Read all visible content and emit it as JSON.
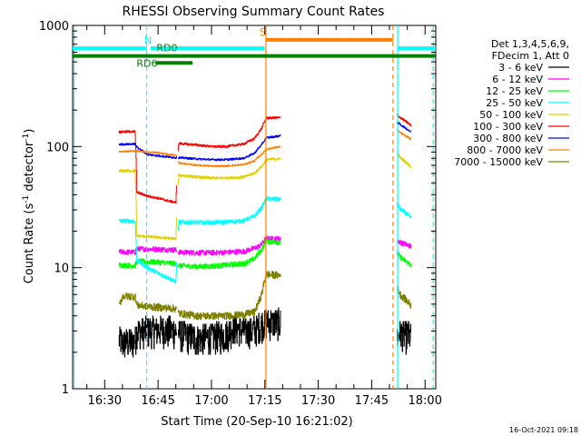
{
  "chart_data": {
    "type": "line",
    "title": "RHESSI Observing Summary Count Rates",
    "xlabel": "Start Time (20-Sep-10 16:21:02)",
    "ylabel_main": "Count Rate (s",
    "ylabel_sup1": "-1",
    "ylabel_mid": " detector",
    "ylabel_sup2": "-1",
    "ylabel_end": ")",
    "footer": "16-Oct-2021 09:18",
    "x_unit": "minutes",
    "xlim": [
      981,
      1083
    ],
    "ylim": [
      1,
      1000
    ],
    "y_scale": "log",
    "x_ticks": [
      {
        "value": 990,
        "label": "16:30"
      },
      {
        "value": 1005,
        "label": "16:45"
      },
      {
        "value": 1020,
        "label": "17:00"
      },
      {
        "value": 1035,
        "label": "17:15"
      },
      {
        "value": 1050,
        "label": "17:30"
      },
      {
        "value": 1065,
        "label": "17:45"
      },
      {
        "value": 1080,
        "label": "18:00"
      }
    ],
    "y_ticks": [
      {
        "value": 1,
        "label": "1"
      },
      {
        "value": 10,
        "label": "10"
      },
      {
        "value": 100,
        "label": "100"
      },
      {
        "value": 1000,
        "label": "1000"
      }
    ],
    "legend": {
      "header": [
        "Det 1,3,4,5,6,9,",
        "FDecim 1, Att 0"
      ],
      "placement": "right"
    },
    "gaps": [
      [
        1010.2,
        1010.6
      ],
      [
        1039.4,
        1072
      ]
    ],
    "series": [
      {
        "name": "3 - 6 keV",
        "color": "#000000",
        "noise": 0.1,
        "points": [
          [
            994,
            2.6
          ],
          [
            995,
            2.4
          ],
          [
            998.5,
            2.5
          ],
          [
            999,
            3.0
          ],
          [
            1005,
            3.1
          ],
          [
            1010,
            3.0
          ],
          [
            1010.8,
            2.9
          ],
          [
            1016,
            2.6
          ],
          [
            1020,
            2.7
          ],
          [
            1024,
            2.8
          ],
          [
            1026,
            3.2
          ],
          [
            1027,
            3.2
          ],
          [
            1029,
            3.0
          ],
          [
            1031,
            3.0
          ],
          [
            1033,
            3.2
          ],
          [
            1034,
            3.4
          ],
          [
            1035,
            3.5
          ],
          [
            1035.4,
            3.6
          ],
          [
            1071.8,
            2.6
          ],
          [
            1073,
            2.9
          ],
          [
            1076,
            2.7
          ]
        ]
      },
      {
        "name": "6 - 12 keV",
        "color": "#ff00ff",
        "noise": 0.05,
        "points": [
          [
            994,
            13.5
          ],
          [
            998.5,
            13.4
          ],
          [
            999,
            14.3
          ],
          [
            1005,
            14.2
          ],
          [
            1010,
            14.0
          ],
          [
            1010.8,
            13.4
          ],
          [
            1016,
            13.3
          ],
          [
            1020,
            13.3
          ],
          [
            1024,
            13.4
          ],
          [
            1029,
            13.6
          ],
          [
            1033,
            14.8
          ],
          [
            1034,
            15.6
          ],
          [
            1035,
            17.0
          ],
          [
            1035.4,
            17.4
          ],
          [
            1071.8,
            17.0
          ],
          [
            1073,
            16.2
          ],
          [
            1076,
            15.0
          ]
        ]
      },
      {
        "name": "12 - 25 keV",
        "color": "#00ff00",
        "noise": 0.05,
        "points": [
          [
            994,
            10.5
          ],
          [
            998.5,
            10.4
          ],
          [
            999,
            11.3
          ],
          [
            1005,
            11.1
          ],
          [
            1010,
            10.8
          ],
          [
            1010.8,
            10.4
          ],
          [
            1016,
            10.2
          ],
          [
            1020,
            10.3
          ],
          [
            1024,
            10.5
          ],
          [
            1029,
            10.8
          ],
          [
            1032,
            11.8
          ],
          [
            1034,
            14.0
          ],
          [
            1035.4,
            16.5
          ],
          [
            1071.8,
            13.5
          ],
          [
            1073,
            12.2
          ],
          [
            1076,
            10.5
          ]
        ]
      },
      {
        "name": "25 - 50 keV",
        "color": "#00ffff",
        "noise": 0.04,
        "points": [
          [
            994,
            24.3
          ],
          [
            998.5,
            24.2
          ],
          [
            999,
            11.5
          ],
          [
            1002,
            10.0
          ],
          [
            1005,
            9.0
          ],
          [
            1008,
            8.2
          ],
          [
            1010,
            7.6
          ],
          [
            1010.8,
            23.8
          ],
          [
            1016,
            23.6
          ],
          [
            1020,
            23.6
          ],
          [
            1024,
            23.8
          ],
          [
            1029,
            24.4
          ],
          [
            1032,
            26.5
          ],
          [
            1034,
            31.0
          ],
          [
            1035.4,
            37.0
          ],
          [
            1071.8,
            35.0
          ],
          [
            1073,
            30.5
          ],
          [
            1076,
            26.0
          ]
        ]
      },
      {
        "name": "50 - 100 keV",
        "color": "#e0d000",
        "noise": 0.025,
        "points": [
          [
            994,
            63
          ],
          [
            998.5,
            63
          ],
          [
            999,
            18.3
          ],
          [
            1005,
            17.8
          ],
          [
            1010,
            17.3
          ],
          [
            1010.8,
            58
          ],
          [
            1016,
            56
          ],
          [
            1020,
            55
          ],
          [
            1024,
            55
          ],
          [
            1029,
            56
          ],
          [
            1032,
            60
          ],
          [
            1034,
            68
          ],
          [
            1035.4,
            78
          ],
          [
            1071.8,
            90
          ],
          [
            1073,
            81
          ],
          [
            1076,
            68
          ]
        ]
      },
      {
        "name": "100 - 300 keV",
        "color": "#ff0000",
        "noise": 0.022,
        "points": [
          [
            994,
            132
          ],
          [
            998.5,
            133
          ],
          [
            999,
            42
          ],
          [
            1002,
            39
          ],
          [
            1005,
            37.5
          ],
          [
            1008,
            35.5
          ],
          [
            1010,
            34.5
          ],
          [
            1010.8,
            106
          ],
          [
            1016,
            103
          ],
          [
            1020,
            100
          ],
          [
            1024,
            100
          ],
          [
            1029,
            105
          ],
          [
            1032,
            116
          ],
          [
            1034,
            140
          ],
          [
            1035.4,
            172
          ],
          [
            1071.8,
            185
          ],
          [
            1073,
            173
          ],
          [
            1076,
            150
          ]
        ]
      },
      {
        "name": "300 - 800 keV",
        "color": "#0000ff",
        "noise": 0.018,
        "points": [
          [
            994,
            104
          ],
          [
            998.5,
            105
          ],
          [
            999,
            99
          ],
          [
            1002,
            86
          ],
          [
            1005,
            84
          ],
          [
            1008,
            82
          ],
          [
            1010,
            81
          ],
          [
            1010.8,
            81
          ],
          [
            1016,
            79
          ],
          [
            1020,
            78
          ],
          [
            1024,
            78
          ],
          [
            1029,
            80
          ],
          [
            1032,
            88
          ],
          [
            1034,
            103
          ],
          [
            1035.4,
            118
          ],
          [
            1071.8,
            162
          ],
          [
            1073,
            152
          ],
          [
            1076,
            132
          ]
        ]
      },
      {
        "name": "800 - 7000 keV",
        "color": "#ff8000",
        "noise": 0.015,
        "points": [
          [
            994,
            91
          ],
          [
            998.5,
            92
          ],
          [
            999,
            92
          ],
          [
            1002,
            90
          ],
          [
            1005,
            89
          ],
          [
            1008,
            86
          ],
          [
            1010,
            85
          ],
          [
            1010.8,
            73
          ],
          [
            1016,
            70
          ],
          [
            1020,
            69
          ],
          [
            1024,
            69
          ],
          [
            1029,
            71
          ],
          [
            1032,
            76
          ],
          [
            1034,
            86
          ],
          [
            1035.4,
            95
          ],
          [
            1071.8,
            140
          ],
          [
            1073,
            130
          ],
          [
            1076,
            115
          ]
        ]
      },
      {
        "name": "7000 - 15000 keV",
        "color": "#808000",
        "noise": 0.07,
        "points": [
          [
            994,
            4.8
          ],
          [
            995,
            5.8
          ],
          [
            998.5,
            5.8
          ],
          [
            999,
            4.9
          ],
          [
            1005,
            4.7
          ],
          [
            1010,
            4.6
          ],
          [
            1010.8,
            4.2
          ],
          [
            1016,
            4.0
          ],
          [
            1020,
            4.0
          ],
          [
            1024,
            4.0
          ],
          [
            1029,
            4.1
          ],
          [
            1032,
            4.3
          ],
          [
            1033,
            5.0
          ],
          [
            1034,
            5.9
          ],
          [
            1035.4,
            8.8
          ],
          [
            1071.8,
            7.2
          ],
          [
            1073,
            6.0
          ],
          [
            1076,
            4.9
          ]
        ]
      }
    ],
    "vlines": [
      {
        "x": 981.4,
        "color": "#00ffff",
        "style": "solid"
      },
      {
        "x": 1001.8,
        "color": "#00ffff",
        "style": "dashed"
      },
      {
        "x": 1035.3,
        "color": "#ff8000",
        "style": "solid"
      },
      {
        "x": 1071.0,
        "color": "#ff8000",
        "style": "dashed"
      },
      {
        "x": 1072.3,
        "color": "#00ffff",
        "style": "solid"
      },
      {
        "x": 1082.3,
        "color": "#00ffff",
        "style": "dashed"
      }
    ],
    "flags": [
      {
        "label": "N",
        "color": "#00ffff",
        "y": 650,
        "segments": [
          [
            981,
            1001.8
          ],
          [
            1002.9,
            1034.9
          ],
          [
            1072.3,
            1083
          ]
        ],
        "label_x": 1002.2,
        "label_anchor": "middle"
      },
      {
        "label": "S",
        "color": "#ff8000",
        "y": 760,
        "segments": [
          [
            1035.3,
            1071.0
          ]
        ],
        "label_x": 1034.4,
        "label_anchor": "middle"
      },
      {
        "label": "RD0",
        "color": "#008000",
        "y": 560,
        "segments": [
          [
            981,
            1083
          ]
        ],
        "label_x": 1007.5,
        "label_anchor": "middle"
      },
      {
        "label": "RD6",
        "color": "#008000",
        "y": 490,
        "segments": [
          [
            1004.3,
            1014.7
          ]
        ],
        "label_x": 1001.9,
        "label_anchor": "middle"
      }
    ]
  }
}
